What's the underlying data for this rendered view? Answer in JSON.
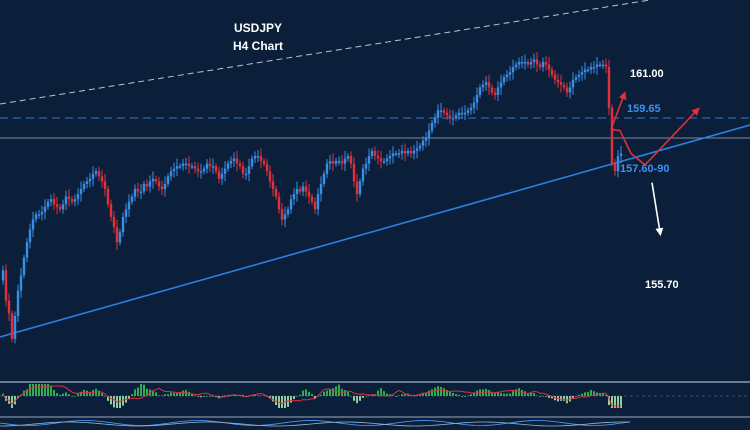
{
  "chart_data": {
    "type": "candlestick",
    "title": "USDJPY",
    "subtitle": "H4 Chart",
    "annotations": {
      "target_up": "161.00",
      "resistance": "159.65",
      "support_zone": "157.60-90",
      "target_down": "155.70"
    },
    "colors": {
      "background": "#0b1f3a",
      "bull_candle": "#3a8ee6",
      "bear_candle": "#e0303b",
      "trendline": "#2e7fe0",
      "resistance_line": "#3a78c8",
      "arrow_up": "#e0303b",
      "arrow_down": "#ffffff",
      "label_blue": "#3d8ff0",
      "label_white": "#ffffff",
      "hist_pos": "#2fae4f",
      "hist_signal": "#e0303b"
    },
    "price_series": [
      [
        0,
        154.0
      ],
      [
        3,
        154.4
      ],
      [
        6,
        153.2
      ],
      [
        9,
        152.7
      ],
      [
        12,
        151.7
      ],
      [
        15,
        152.6
      ],
      [
        18,
        153.6
      ],
      [
        21,
        154.2
      ],
      [
        24,
        154.9
      ],
      [
        27,
        155.5
      ],
      [
        30,
        156.0
      ],
      [
        33,
        156.4
      ],
      [
        36,
        156.6
      ],
      [
        39,
        156.6
      ],
      [
        42,
        156.7
      ],
      [
        45,
        156.9
      ],
      [
        48,
        157.1
      ],
      [
        51,
        157.2
      ],
      [
        54,
        157.0
      ],
      [
        57,
        156.9
      ],
      [
        60,
        156.8
      ],
      [
        63,
        157.0
      ],
      [
        66,
        157.3
      ],
      [
        69,
        157.2
      ],
      [
        72,
        157.1
      ],
      [
        75,
        157.2
      ],
      [
        78,
        157.4
      ],
      [
        81,
        157.6
      ],
      [
        84,
        157.8
      ],
      [
        87,
        157.9
      ],
      [
        90,
        158.0
      ],
      [
        93,
        158.2
      ],
      [
        96,
        158.3
      ],
      [
        99,
        158.1
      ],
      [
        102,
        157.9
      ],
      [
        105,
        157.6
      ],
      [
        108,
        157.0
      ],
      [
        111,
        156.5
      ],
      [
        114,
        156.1
      ],
      [
        117,
        155.5
      ],
      [
        120,
        155.9
      ],
      [
        123,
        156.5
      ],
      [
        126,
        156.8
      ],
      [
        129,
        157.1
      ],
      [
        132,
        157.3
      ],
      [
        135,
        157.6
      ],
      [
        138,
        157.5
      ],
      [
        141,
        157.5
      ],
      [
        144,
        157.8
      ],
      [
        147,
        157.7
      ],
      [
        150,
        157.9
      ],
      [
        153,
        158.0
      ],
      [
        156,
        157.9
      ],
      [
        159,
        157.7
      ],
      [
        162,
        157.6
      ],
      [
        165,
        157.8
      ],
      [
        168,
        158.1
      ],
      [
        171,
        158.3
      ],
      [
        174,
        158.4
      ],
      [
        177,
        158.5
      ],
      [
        180,
        158.5
      ],
      [
        183,
        158.6
      ],
      [
        186,
        158.6
      ],
      [
        189,
        158.5
      ],
      [
        192,
        158.5
      ],
      [
        195,
        158.4
      ],
      [
        198,
        158.3
      ],
      [
        201,
        158.3
      ],
      [
        204,
        158.4
      ],
      [
        207,
        158.6
      ],
      [
        210,
        158.5
      ],
      [
        213,
        158.5
      ],
      [
        216,
        158.3
      ],
      [
        219,
        158.0
      ],
      [
        222,
        158.2
      ],
      [
        225,
        158.4
      ],
      [
        228,
        158.6
      ],
      [
        231,
        158.7
      ],
      [
        234,
        158.8
      ],
      [
        237,
        158.6
      ],
      [
        240,
        158.5
      ],
      [
        243,
        158.2
      ],
      [
        246,
        158.2
      ],
      [
        249,
        158.5
      ],
      [
        252,
        158.8
      ],
      [
        255,
        158.9
      ],
      [
        258,
        158.9
      ],
      [
        261,
        158.7
      ],
      [
        264,
        158.6
      ],
      [
        267,
        158.3
      ],
      [
        270,
        157.9
      ],
      [
        273,
        157.6
      ],
      [
        276,
        157.3
      ],
      [
        279,
        156.8
      ],
      [
        282,
        156.4
      ],
      [
        285,
        156.6
      ],
      [
        288,
        156.8
      ],
      [
        291,
        157.2
      ],
      [
        294,
        157.4
      ],
      [
        297,
        157.6
      ],
      [
        300,
        157.5
      ],
      [
        303,
        157.7
      ],
      [
        306,
        157.5
      ],
      [
        309,
        157.3
      ],
      [
        312,
        157.1
      ],
      [
        315,
        156.8
      ],
      [
        318,
        157.4
      ],
      [
        321,
        157.8
      ],
      [
        324,
        158.2
      ],
      [
        327,
        158.6
      ],
      [
        330,
        158.7
      ],
      [
        333,
        158.6
      ],
      [
        336,
        158.7
      ],
      [
        339,
        158.7
      ],
      [
        342,
        158.6
      ],
      [
        345,
        158.8
      ],
      [
        348,
        158.9
      ],
      [
        351,
        158.6
      ],
      [
        354,
        157.9
      ],
      [
        357,
        157.4
      ],
      [
        360,
        157.9
      ],
      [
        363,
        158.4
      ],
      [
        366,
        158.6
      ],
      [
        369,
        158.9
      ],
      [
        372,
        159.1
      ],
      [
        375,
        158.9
      ],
      [
        378,
        158.8
      ],
      [
        381,
        158.7
      ],
      [
        384,
        158.7
      ],
      [
        387,
        158.8
      ],
      [
        390,
        158.9
      ],
      [
        393,
        159.0
      ],
      [
        396,
        159.0
      ],
      [
        399,
        159.0
      ],
      [
        402,
        159.1
      ],
      [
        405,
        159.0
      ],
      [
        408,
        159.1
      ],
      [
        411,
        159.0
      ],
      [
        414,
        159.1
      ],
      [
        417,
        159.2
      ],
      [
        420,
        159.3
      ],
      [
        423,
        159.5
      ],
      [
        426,
        159.6
      ],
      [
        429,
        159.9
      ],
      [
        432,
        160.2
      ],
      [
        435,
        160.4
      ],
      [
        438,
        160.7
      ],
      [
        441,
        160.7
      ],
      [
        444,
        160.6
      ],
      [
        447,
        160.5
      ],
      [
        450,
        160.4
      ],
      [
        453,
        160.4
      ],
      [
        456,
        160.5
      ],
      [
        459,
        160.6
      ],
      [
        462,
        160.6
      ],
      [
        465,
        160.6
      ],
      [
        468,
        160.7
      ],
      [
        471,
        160.8
      ],
      [
        474,
        161.0
      ],
      [
        477,
        161.3
      ],
      [
        480,
        161.6
      ],
      [
        483,
        161.7
      ],
      [
        486,
        161.8
      ],
      [
        489,
        161.6
      ],
      [
        492,
        161.4
      ],
      [
        495,
        161.3
      ],
      [
        498,
        161.6
      ],
      [
        501,
        161.8
      ],
      [
        504,
        162.0
      ],
      [
        507,
        162.1
      ],
      [
        510,
        162.2
      ],
      [
        513,
        162.4
      ],
      [
        516,
        162.5
      ],
      [
        519,
        162.6
      ],
      [
        522,
        162.6
      ],
      [
        525,
        162.6
      ],
      [
        528,
        162.5
      ],
      [
        531,
        162.6
      ],
      [
        534,
        162.7
      ],
      [
        537,
        162.5
      ],
      [
        540,
        162.4
      ],
      [
        543,
        162.6
      ],
      [
        546,
        162.5
      ],
      [
        549,
        162.3
      ],
      [
        552,
        162.1
      ],
      [
        555,
        161.9
      ],
      [
        558,
        161.8
      ],
      [
        561,
        161.7
      ],
      [
        564,
        161.6
      ],
      [
        567,
        161.4
      ],
      [
        570,
        161.6
      ],
      [
        573,
        161.9
      ],
      [
        576,
        162.0
      ],
      [
        579,
        162.1
      ],
      [
        582,
        162.2
      ],
      [
        585,
        162.3
      ],
      [
        588,
        162.3
      ],
      [
        591,
        162.4
      ],
      [
        594,
        162.4
      ],
      [
        597,
        162.5
      ],
      [
        600,
        162.5
      ],
      [
        603,
        162.5
      ],
      [
        606,
        162.4
      ],
      [
        609,
        160.8
      ],
      [
        612,
        158.6
      ],
      [
        615,
        158.3
      ],
      [
        618,
        158.9
      ],
      [
        621,
        159.0
      ]
    ],
    "projection_up": [
      [
        611,
        159.95
      ],
      [
        620,
        159.9
      ],
      [
        631,
        159.0
      ],
      [
        645,
        158.55
      ],
      [
        697,
        160.7
      ]
    ],
    "projection_down": [
      [
        652,
        157.85
      ],
      [
        660,
        155.9
      ]
    ]
  }
}
